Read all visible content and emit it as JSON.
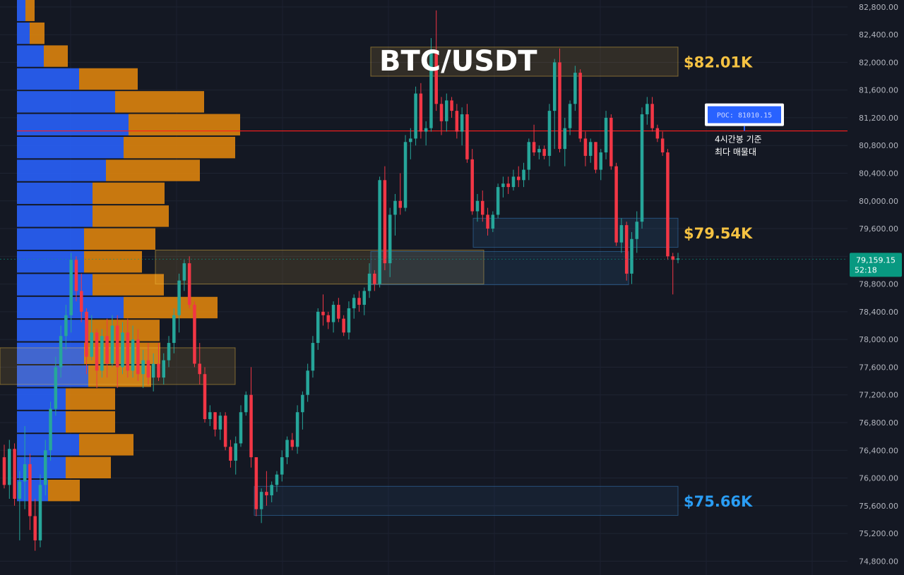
{
  "title": "BTC/USDT",
  "colors": {
    "background": "#141823",
    "up": "#26a69a",
    "down": "#f23645",
    "vp_up": "#2962ff",
    "vp_down": "#e8890c",
    "poc_line": "#ff1e1e",
    "zone_gold": "#f5c242",
    "zone_blue": "#3b8fd6",
    "zone_label_blue": "#2a9df4",
    "price_tag": "#089981"
  },
  "chart_data": {
    "type": "candlestick",
    "symbol": "BTC/USDT",
    "y_axis": {
      "min": 74600,
      "max": 82900,
      "ticks": [
        82800,
        82400,
        82000,
        81600,
        81200,
        80800,
        80400,
        80000,
        79600,
        79200,
        78800,
        78400,
        78000,
        77600,
        77200,
        76800,
        76400,
        76000,
        75600,
        75200,
        74800
      ],
      "tick_labels": [
        "82,800.00",
        "82,400.00",
        "82,000.00",
        "81,600.00",
        "81,200.00",
        "80,800.00",
        "80,400.00",
        "80,000.00",
        "79,600.00",
        "79,200.00",
        "78,800.00",
        "78,400.00",
        "78,000.00",
        "77,600.00",
        "77,200.00",
        "76,800.00",
        "76,400.00",
        "76,000.00",
        "75,600.00",
        "75,200.00",
        "74,800.00"
      ]
    },
    "current_price": {
      "label": "79,159.15",
      "countdown": "52:18",
      "value": 79159.15
    },
    "poc": {
      "label": "POC: 81010.15",
      "value": 81010.15,
      "annotation_line1": "4시간봉 기준",
      "annotation_line2": "최다 매물대"
    },
    "zones": [
      {
        "label": "$82.01K",
        "kind": "resistance",
        "from": 81800,
        "to": 82220
      },
      {
        "label": "$79.54K",
        "kind": "support",
        "from": 79330,
        "to": 79750
      },
      {
        "label": "$75.66K",
        "kind": "support",
        "from": 75460,
        "to": 75880
      },
      {
        "label": "",
        "kind": "resistance",
        "from": 78800,
        "to": 79290
      },
      {
        "label": "",
        "kind": "resistance",
        "from": 77350,
        "to": 77880
      },
      {
        "label": "",
        "kind": "support",
        "from": 78790,
        "to": 79270
      }
    ],
    "volume_profile": {
      "bin_size": 330,
      "rows": [
        {
          "price": 82750,
          "buy": 12,
          "sell": 13
        },
        {
          "price": 82420,
          "buy": 18,
          "sell": 21
        },
        {
          "price": 82090,
          "buy": 38,
          "sell": 34
        },
        {
          "price": 81760,
          "buy": 88,
          "sell": 83
        },
        {
          "price": 81430,
          "buy": 139,
          "sell": 126
        },
        {
          "price": 81100,
          "buy": 158,
          "sell": 158
        },
        {
          "price": 80770,
          "buy": 151,
          "sell": 158
        },
        {
          "price": 80440,
          "buy": 126,
          "sell": 133
        },
        {
          "price": 80110,
          "buy": 107,
          "sell": 102
        },
        {
          "price": 79780,
          "buy": 107,
          "sell": 108
        },
        {
          "price": 79450,
          "buy": 95,
          "sell": 101
        },
        {
          "price": 79120,
          "buy": 95,
          "sell": 82
        },
        {
          "price": 78790,
          "buy": 107,
          "sell": 101
        },
        {
          "price": 78460,
          "buy": 151,
          "sell": 133
        },
        {
          "price": 78130,
          "buy": 101,
          "sell": 101
        },
        {
          "price": 77800,
          "buy": 95,
          "sell": 108
        },
        {
          "price": 77470,
          "buy": 101,
          "sell": 89
        },
        {
          "price": 77140,
          "buy": 69,
          "sell": 70
        },
        {
          "price": 76810,
          "buy": 69,
          "sell": 70
        },
        {
          "price": 76480,
          "buy": 88,
          "sell": 77
        },
        {
          "price": 76150,
          "buy": 69,
          "sell": 64
        },
        {
          "price": 75820,
          "buy": 44,
          "sell": 45
        }
      ]
    },
    "candles": [
      [
        76300,
        76480,
        75850,
        75900
      ],
      [
        75900,
        76550,
        75700,
        76420
      ],
      [
        76420,
        76500,
        75600,
        75700
      ],
      [
        75700,
        76100,
        75100,
        75950
      ],
      [
        75950,
        76750,
        75550,
        76200
      ],
      [
        76200,
        76350,
        75250,
        75450
      ],
      [
        75450,
        75700,
        74950,
        75100
      ],
      [
        75100,
        76050,
        75000,
        75900
      ],
      [
        75900,
        76550,
        75750,
        76400
      ],
      [
        76400,
        77100,
        76250,
        77000
      ],
      [
        77000,
        77750,
        76900,
        77600
      ],
      [
        77600,
        78200,
        77450,
        78050
      ],
      [
        78050,
        78500,
        77850,
        78350
      ],
      [
        78350,
        79250,
        78100,
        79150
      ],
      [
        79150,
        79200,
        78550,
        78700
      ],
      [
        78700,
        78950,
        78250,
        78400
      ],
      [
        78400,
        78450,
        77500,
        77750
      ],
      [
        77750,
        78350,
        77700,
        78100
      ],
      [
        78100,
        78150,
        77300,
        77550
      ],
      [
        77550,
        78150,
        77450,
        78050
      ],
      [
        78050,
        78300,
        77450,
        77650
      ],
      [
        77650,
        78350,
        77600,
        78200
      ],
      [
        78200,
        78350,
        77300,
        77600
      ],
      [
        77600,
        78250,
        77500,
        78100
      ],
      [
        78100,
        78300,
        77450,
        77550
      ],
      [
        77550,
        78200,
        77450,
        78000
      ],
      [
        78000,
        78150,
        77400,
        77500
      ],
      [
        77500,
        77850,
        77300,
        77700
      ],
      [
        77700,
        77950,
        77350,
        77450
      ],
      [
        77450,
        77800,
        77250,
        77650
      ],
      [
        77650,
        77950,
        77400,
        77450
      ],
      [
        77450,
        77800,
        77350,
        77700
      ],
      [
        77700,
        78050,
        77600,
        77950
      ],
      [
        77950,
        78450,
        77800,
        78350
      ],
      [
        78350,
        78950,
        78100,
        78850
      ],
      [
        78850,
        79150,
        78700,
        79100
      ],
      [
        79100,
        79200,
        78450,
        78500
      ],
      [
        78500,
        78550,
        77600,
        77650
      ],
      [
        77650,
        77950,
        77350,
        77500
      ],
      [
        77500,
        77600,
        76800,
        76850
      ],
      [
        76850,
        77050,
        76750,
        76950
      ],
      [
        76950,
        76950,
        76600,
        76700
      ],
      [
        76700,
        76950,
        76550,
        76900
      ],
      [
        76900,
        76950,
        76400,
        76450
      ],
      [
        76450,
        76550,
        76150,
        76250
      ],
      [
        76250,
        76600,
        76050,
        76500
      ],
      [
        76500,
        77050,
        76450,
        76950
      ],
      [
        76950,
        77250,
        76900,
        77200
      ],
      [
        77200,
        77600,
        76150,
        76300
      ],
      [
        76300,
        76300,
        75450,
        75550
      ],
      [
        75550,
        75850,
        75350,
        75800
      ],
      [
        75800,
        76100,
        75600,
        75750
      ],
      [
        75750,
        75950,
        75650,
        75900
      ],
      [
        75900,
        76100,
        75800,
        76050
      ],
      [
        76050,
        76400,
        75950,
        76300
      ],
      [
        76300,
        76600,
        76200,
        76550
      ],
      [
        76550,
        76650,
        76400,
        76450
      ],
      [
        76450,
        77050,
        76350,
        76950
      ],
      [
        76950,
        77250,
        76700,
        77200
      ],
      [
        77200,
        77650,
        77100,
        77550
      ],
      [
        77550,
        78050,
        77450,
        77950
      ],
      [
        77950,
        78450,
        77850,
        78400
      ],
      [
        78400,
        78650,
        78200,
        78350
      ],
      [
        78350,
        78400,
        78150,
        78250
      ],
      [
        78250,
        78550,
        78100,
        78500
      ],
      [
        78500,
        78600,
        78250,
        78300
      ],
      [
        78300,
        78350,
        78050,
        78100
      ],
      [
        78100,
        78550,
        78000,
        78450
      ],
      [
        78450,
        78650,
        78300,
        78600
      ],
      [
        78600,
        78700,
        78400,
        78500
      ],
      [
        78500,
        78750,
        78350,
        78700
      ],
      [
        78700,
        79100,
        78600,
        78950
      ],
      [
        78950,
        79000,
        78700,
        78800
      ],
      [
        78800,
        80350,
        78750,
        80300
      ],
      [
        80300,
        80500,
        79000,
        79100
      ],
      [
        79100,
        79900,
        78900,
        79800
      ],
      [
        79800,
        80100,
        79500,
        80000
      ],
      [
        80000,
        80400,
        79800,
        79900
      ],
      [
        79900,
        80950,
        79850,
        80850
      ],
      [
        80850,
        81050,
        80600,
        80900
      ],
      [
        80900,
        81650,
        80800,
        81550
      ],
      [
        81550,
        81700,
        80900,
        81000
      ],
      [
        81000,
        81150,
        80800,
        81050
      ],
      [
        81050,
        82350,
        81000,
        82150
      ],
      [
        82150,
        82750,
        81300,
        81400
      ],
      [
        81400,
        81500,
        80950,
        81150
      ],
      [
        81150,
        81550,
        81000,
        81450
      ],
      [
        81450,
        81500,
        81200,
        81300
      ],
      [
        81300,
        81400,
        80900,
        81000
      ],
      [
        81000,
        81350,
        80800,
        81250
      ],
      [
        81250,
        81400,
        80550,
        80600
      ],
      [
        80600,
        80750,
        79800,
        79850
      ],
      [
        79850,
        80100,
        79700,
        80000
      ],
      [
        80000,
        80150,
        79700,
        79800
      ],
      [
        79800,
        79900,
        79500,
        79600
      ],
      [
        79600,
        79850,
        79550,
        79800
      ],
      [
        79800,
        80250,
        79750,
        80200
      ],
      [
        80200,
        80350,
        80050,
        80250
      ],
      [
        80250,
        80350,
        80100,
        80200
      ],
      [
        80200,
        80450,
        80150,
        80350
      ],
      [
        80350,
        80500,
        80200,
        80300
      ],
      [
        80300,
        80550,
        80200,
        80450
      ],
      [
        80450,
        80900,
        80300,
        80850
      ],
      [
        80850,
        81100,
        80650,
        80700
      ],
      [
        80700,
        80800,
        80600,
        80750
      ],
      [
        80750,
        80800,
        80600,
        80650
      ],
      [
        80650,
        81400,
        80500,
        81300
      ],
      [
        81300,
        82050,
        80750,
        82000
      ],
      [
        82000,
        82200,
        80700,
        80750
      ],
      [
        80750,
        81200,
        80500,
        81050
      ],
      [
        81050,
        81450,
        80950,
        81400
      ],
      [
        81400,
        81950,
        81300,
        81850
      ],
      [
        81850,
        81900,
        80850,
        80900
      ],
      [
        80900,
        81000,
        80500,
        80650
      ],
      [
        80650,
        80900,
        80550,
        80850
      ],
      [
        80850,
        80850,
        80400,
        80450
      ],
      [
        80450,
        80750,
        80300,
        80700
      ],
      [
        80700,
        81300,
        80600,
        81200
      ],
      [
        81200,
        81250,
        80450,
        80500
      ],
      [
        80500,
        80550,
        79350,
        79400
      ],
      [
        79400,
        79750,
        79250,
        79650
      ],
      [
        79650,
        79700,
        78850,
        78950
      ],
      [
        78950,
        79550,
        78800,
        79450
      ],
      [
        79450,
        79850,
        79250,
        79700
      ],
      [
        79700,
        81350,
        79600,
        81250
      ],
      [
        81250,
        81500,
        81100,
        81400
      ],
      [
        81400,
        81500,
        81000,
        81050
      ],
      [
        81050,
        81100,
        80850,
        80900
      ],
      [
        80900,
        81000,
        80650,
        80700
      ],
      [
        80700,
        80750,
        79150,
        79200
      ],
      [
        79200,
        79250,
        78650,
        79150
      ],
      [
        79150,
        79250,
        79100,
        79170
      ]
    ]
  }
}
